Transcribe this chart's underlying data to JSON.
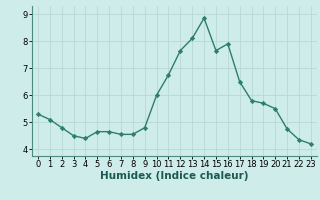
{
  "x": [
    0,
    1,
    2,
    3,
    4,
    5,
    6,
    7,
    8,
    9,
    10,
    11,
    12,
    13,
    14,
    15,
    16,
    17,
    18,
    19,
    20,
    21,
    22,
    23
  ],
  "y": [
    5.3,
    5.1,
    4.8,
    4.5,
    4.4,
    4.65,
    4.65,
    4.55,
    4.55,
    4.8,
    6.0,
    6.75,
    7.65,
    8.1,
    8.85,
    7.65,
    7.9,
    6.5,
    5.8,
    5.7,
    5.5,
    4.75,
    4.35,
    4.2
  ],
  "line_color": "#2e7d6e",
  "marker": "D",
  "marker_size": 2.2,
  "line_width": 1.0,
  "xlabel": "Humidex (Indice chaleur)",
  "xlabel_fontsize": 7.5,
  "ylim": [
    3.75,
    9.3
  ],
  "xlim": [
    -0.5,
    23.5
  ],
  "yticks": [
    4,
    5,
    6,
    7,
    8,
    9
  ],
  "xticks": [
    0,
    1,
    2,
    3,
    4,
    5,
    6,
    7,
    8,
    9,
    10,
    11,
    12,
    13,
    14,
    15,
    16,
    17,
    18,
    19,
    20,
    21,
    22,
    23
  ],
  "bg_color": "#ceecea",
  "grid_color": "#b8d8d6",
  "tick_fontsize": 6.0,
  "spine_color": "#4a8a80"
}
